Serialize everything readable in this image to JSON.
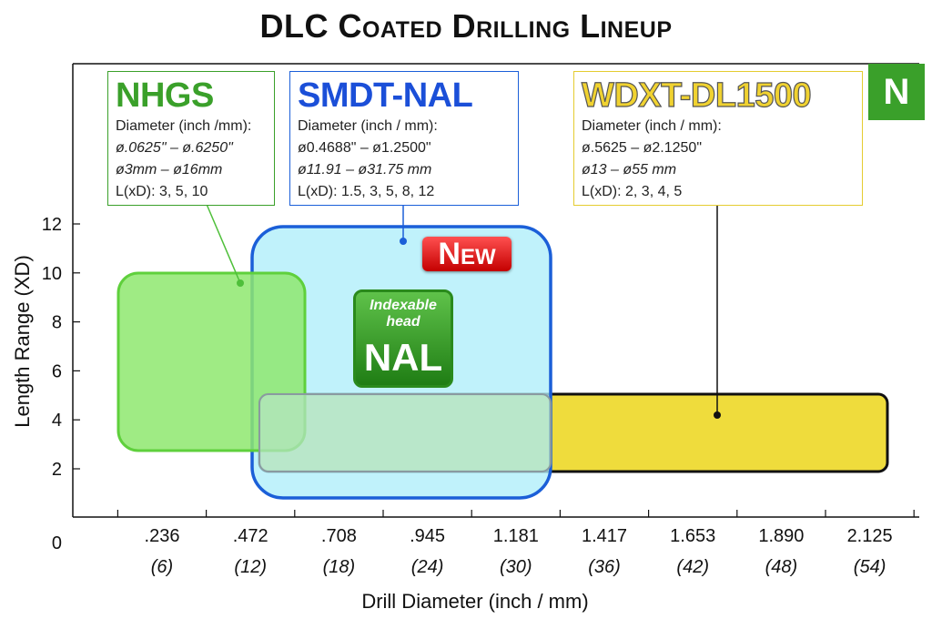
{
  "chart_data": {
    "type": "area",
    "title": "DLC Coated Drilling Lineup",
    "xlabel": "Drill Diameter (inch / mm)",
    "ylabel": "Length Range (XD)",
    "x_ticks": [
      {
        "value": 0.236,
        "inch": ".236",
        "mm": "(6)"
      },
      {
        "value": 0.472,
        "inch": ".472",
        "mm": "(12)"
      },
      {
        "value": 0.708,
        "inch": ".708",
        "mm": "(18)"
      },
      {
        "value": 0.945,
        "inch": ".945",
        "mm": "(24)"
      },
      {
        "value": 1.181,
        "inch": "1.181",
        "mm": "(30)"
      },
      {
        "value": 1.417,
        "inch": "1.417",
        "mm": "(36)"
      },
      {
        "value": 1.653,
        "inch": "1.653",
        "mm": "(42)"
      },
      {
        "value": 1.89,
        "inch": "1.890",
        "mm": "(48)"
      },
      {
        "value": 2.125,
        "inch": "2.125",
        "mm": "(54)"
      }
    ],
    "y_ticks": [
      "2",
      "4",
      "6",
      "8",
      "10",
      "12"
    ],
    "y_zero_label": "0",
    "series": [
      {
        "name": "NHGS",
        "x_range": [
          0.0625,
          0.625
        ],
        "y_range": [
          3,
          10
        ],
        "color": "#8ee86e",
        "stroke": "#5fd03c",
        "diameter_label": "Diameter (inch /mm):",
        "lines": [
          "ø.0625\" – ø.6250\"",
          "ø3mm – ø16mm"
        ],
        "ld": "L(xD): 3, 5, 10"
      },
      {
        "name": "SMDT-NAL",
        "x_range": [
          0.4688,
          1.25
        ],
        "y_range": [
          1.5,
          12
        ],
        "color": "#aeeefa",
        "stroke": "#1b5fd8",
        "diameter_label": "Diameter (inch / mm):",
        "lines": [
          "ø0.4688\" – ø1.2500\"",
          "ø11.91 – ø31.75 mm"
        ],
        "ld": "L(xD): 1.5, 3, 5, 8, 12"
      },
      {
        "name": "WDXT-DL1500",
        "x_range": [
          0.5625,
          2.125
        ],
        "y_range": [
          2,
          5
        ],
        "color": "#efdc3c",
        "stroke": "#111111",
        "diameter_label": "Diameter (inch / mm):",
        "lines": [
          "ø.5625 – ø2.1250\"",
          "ø13 – ø55 mm"
        ],
        "ld": "L(xD): 2, 3, 4, 5"
      }
    ],
    "xlim": [
      0,
      2.2
    ],
    "ylim": [
      0,
      12
    ],
    "grid": false,
    "badge_n": "N",
    "new_badge": "New",
    "nal_badge": {
      "sub": "Indexable head",
      "label": "NAL"
    }
  }
}
